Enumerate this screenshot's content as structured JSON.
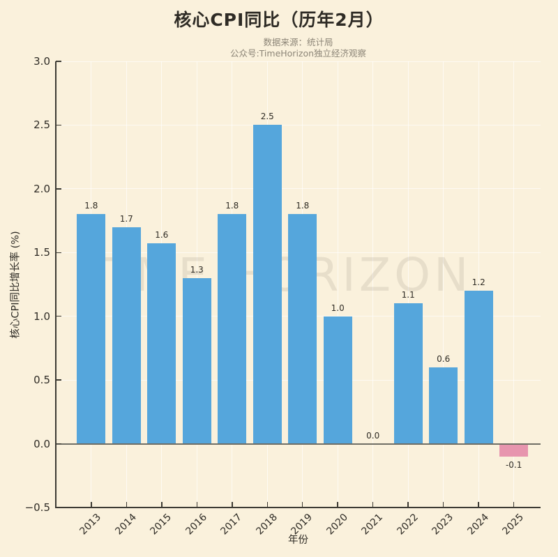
{
  "header": {
    "title": "核心CPI同比（历年2月）",
    "subtitle_line1": "数据来源：统计局",
    "subtitle_line2": "公众号:TimeHorizon独立经济观察"
  },
  "watermark": "TIME HORIZON",
  "chart_data": {
    "type": "bar",
    "title": "核心CPI同比（历年2月）",
    "xlabel": "年份",
    "ylabel": "核心CPI同比增长率 (%)",
    "categories": [
      "2013",
      "2014",
      "2015",
      "2016",
      "2017",
      "2018",
      "2019",
      "2020",
      "2021",
      "2022",
      "2023",
      "2024",
      "2025"
    ],
    "values": [
      1.8,
      1.7,
      1.6,
      1.3,
      1.8,
      2.5,
      1.8,
      1.0,
      0.0,
      1.1,
      0.6,
      1.2,
      -0.1
    ],
    "bar_labels": [
      "1.8",
      "1.7",
      "1.6",
      "1.3",
      "1.8",
      "2.5",
      "1.8",
      "1.0",
      "0.0",
      "1.1",
      "0.6",
      "1.2",
      "-0.1"
    ],
    "bar_heights": [
      1.8,
      1.7,
      1.57,
      1.3,
      1.8,
      2.5,
      1.8,
      1.0,
      0.0,
      1.1,
      0.6,
      1.2,
      -0.1
    ],
    "ylim": [
      -0.5,
      3.0
    ],
    "ytick_step": 0.5,
    "ytick_labels": [
      "−0.5",
      "0.0",
      "0.5",
      "1.0",
      "1.5",
      "2.0",
      "2.5",
      "3.0"
    ],
    "grid": true,
    "legend": "none",
    "colors": {
      "background": "#FAF1DC",
      "bar_positive": "#55A6DC",
      "bar_negative": "#E795AE",
      "axis": "#3C3A33",
      "zero_line": "#6F6D64",
      "grid": "rgba(255,255,255,0.65)",
      "text": "#2E2B25",
      "subtitle_text": "#8C8577"
    }
  }
}
